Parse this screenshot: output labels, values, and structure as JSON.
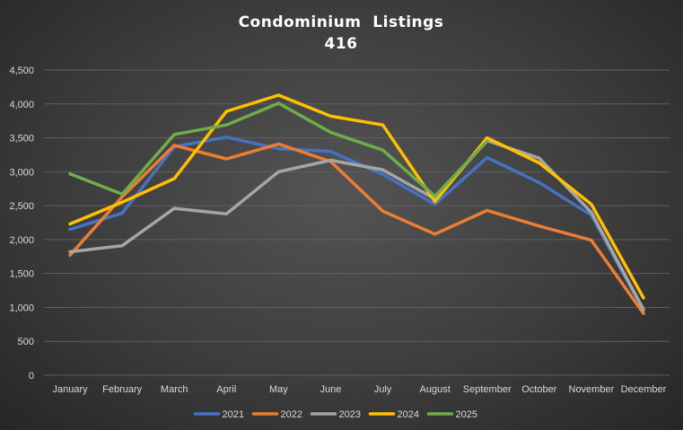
{
  "chart_data": {
    "type": "line",
    "title": "Condominium  Listings",
    "subtitle": "416",
    "xlabel": "",
    "ylabel": "",
    "categories": [
      "January",
      "February",
      "March",
      "April",
      "May",
      "June",
      "July",
      "August",
      "September",
      "October",
      "November",
      "December"
    ],
    "ylim": [
      0,
      4500
    ],
    "yticks": [
      0,
      500,
      1000,
      1500,
      2000,
      2500,
      3000,
      3500,
      4000,
      4500
    ],
    "ytick_labels": [
      "0",
      "500",
      "1,000",
      "1,500",
      "2,000",
      "2,500",
      "3,000",
      "3,500",
      "4,000",
      "4,500"
    ],
    "grid": true,
    "legend_position": "bottom",
    "series": [
      {
        "name": "2021",
        "color": "#4472c4",
        "values": [
          2150,
          2390,
          3370,
          3510,
          3340,
          3300,
          2960,
          2520,
          3210,
          2840,
          2360,
          950
        ]
      },
      {
        "name": "2022",
        "color": "#ed7d31",
        "values": [
          1770,
          2630,
          3390,
          3190,
          3410,
          3150,
          2420,
          2080,
          2430,
          2200,
          1990,
          910
        ]
      },
      {
        "name": "2023",
        "color": "#a5a5a5",
        "values": [
          1820,
          1910,
          2460,
          2380,
          3000,
          3170,
          3030,
          2600,
          3460,
          3200,
          2400,
          970
        ]
      },
      {
        "name": "2024",
        "color": "#ffc000",
        "values": [
          2230,
          2550,
          2900,
          3890,
          4130,
          3820,
          3690,
          2560,
          3500,
          3130,
          2520,
          1140
        ]
      },
      {
        "name": "2025",
        "color": "#70ad47",
        "values": [
          2970,
          2670,
          3550,
          3690,
          4010,
          3580,
          3320,
          2640,
          3450,
          null,
          null,
          null
        ]
      }
    ]
  }
}
